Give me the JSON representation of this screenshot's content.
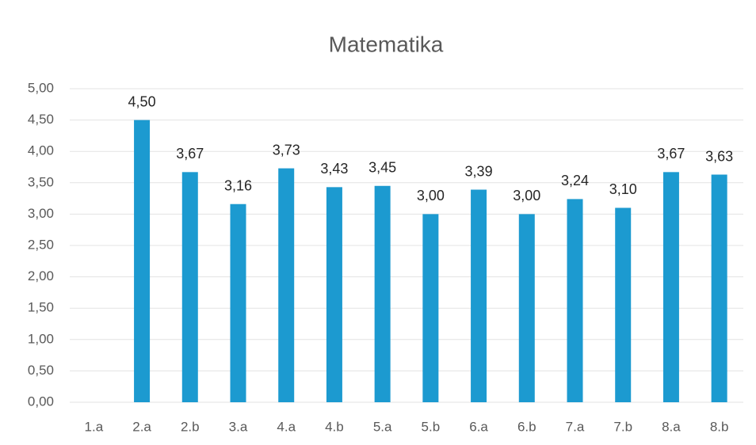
{
  "chart_data": {
    "type": "bar",
    "title": "Matematika",
    "categories": [
      "1.a",
      "2.a",
      "2.b",
      "3.a",
      "4.a",
      "4.b",
      "5.a",
      "5.b",
      "6.a",
      "6.b",
      "7.a",
      "7.b",
      "8.a",
      "8.b"
    ],
    "values": [
      null,
      4.5,
      3.67,
      3.16,
      3.73,
      3.43,
      3.45,
      3.0,
      3.39,
      3.0,
      3.24,
      3.1,
      3.67,
      3.63
    ],
    "value_labels": [
      null,
      "4,50",
      "3,67",
      "3,16",
      "3,73",
      "3,43",
      "3,45",
      "3,00",
      "3,39",
      "3,00",
      "3,24",
      "3,10",
      "3,67",
      "3,63"
    ],
    "color": "#1c9ad0",
    "ylim": [
      0,
      5
    ],
    "yticks": [
      {
        "value": 0,
        "label": "0,00"
      },
      {
        "value": 0.5,
        "label": "0,50"
      },
      {
        "value": 1,
        "label": "1,00"
      },
      {
        "value": 1.5,
        "label": "1,50"
      },
      {
        "value": 2,
        "label": "2,00"
      },
      {
        "value": 2.5,
        "label": "2,50"
      },
      {
        "value": 3,
        "label": "3,00"
      },
      {
        "value": 3.5,
        "label": "3,50"
      },
      {
        "value": 4,
        "label": "4,00"
      },
      {
        "value": 4.5,
        "label": "4,50"
      },
      {
        "value": 5,
        "label": "5,00"
      }
    ],
    "grid": true
  }
}
